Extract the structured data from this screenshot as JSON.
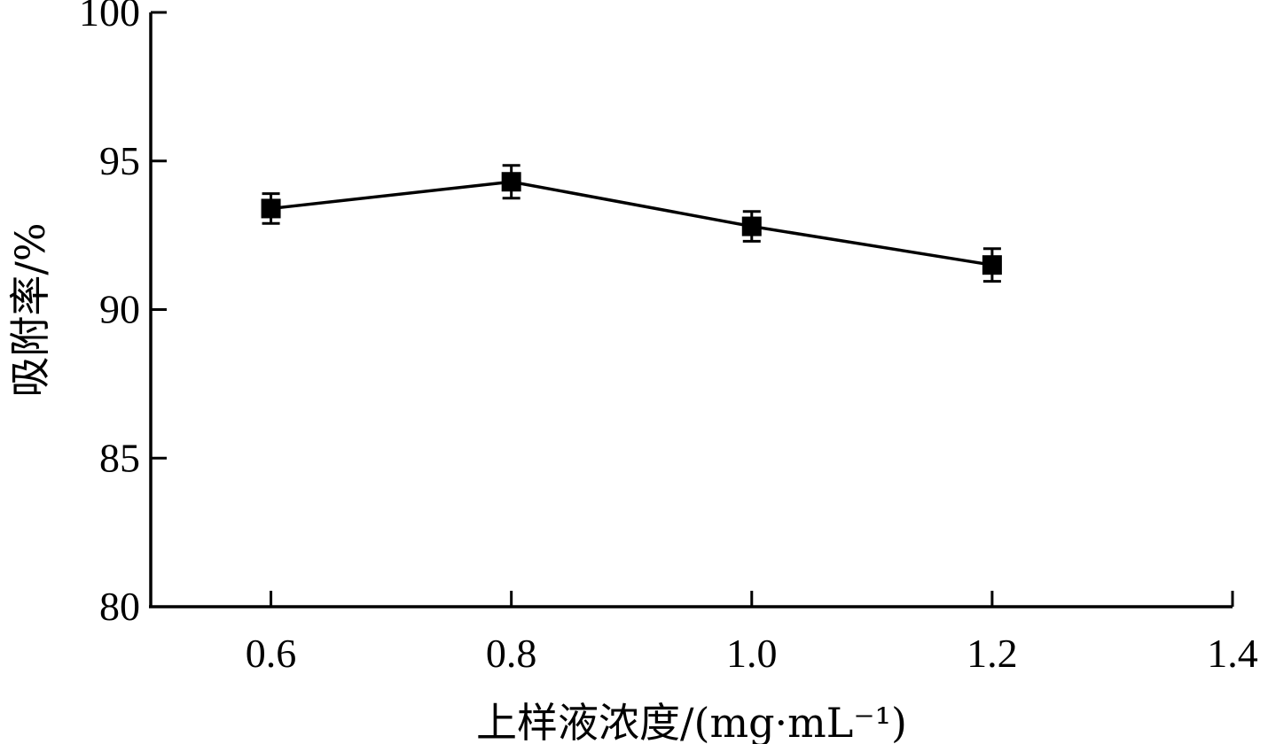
{
  "chart_data": {
    "type": "line",
    "title": "",
    "xlabel": "上样液浓度/(mg·mL⁻¹)",
    "ylabel": "吸附率/%",
    "xlim": [
      0.5,
      1.4
    ],
    "ylim": [
      80,
      100
    ],
    "xticks": [
      0.6,
      0.8,
      1.0,
      1.2,
      1.4
    ],
    "xtick_labels": [
      "0.6",
      "0.8",
      "1.0",
      "1.2",
      "1.4"
    ],
    "yticks": [
      80,
      85,
      90,
      95,
      100
    ],
    "ytick_labels": [
      "80",
      "85",
      "90",
      "95",
      "100"
    ],
    "grid": false,
    "series": [
      {
        "marker": "square",
        "color": "#000000",
        "x": [
          0.6,
          0.8,
          1.0,
          1.2
        ],
        "y": [
          93.4,
          94.3,
          92.8,
          91.5
        ],
        "error": [
          0.5,
          0.55,
          0.5,
          0.55
        ]
      }
    ]
  }
}
